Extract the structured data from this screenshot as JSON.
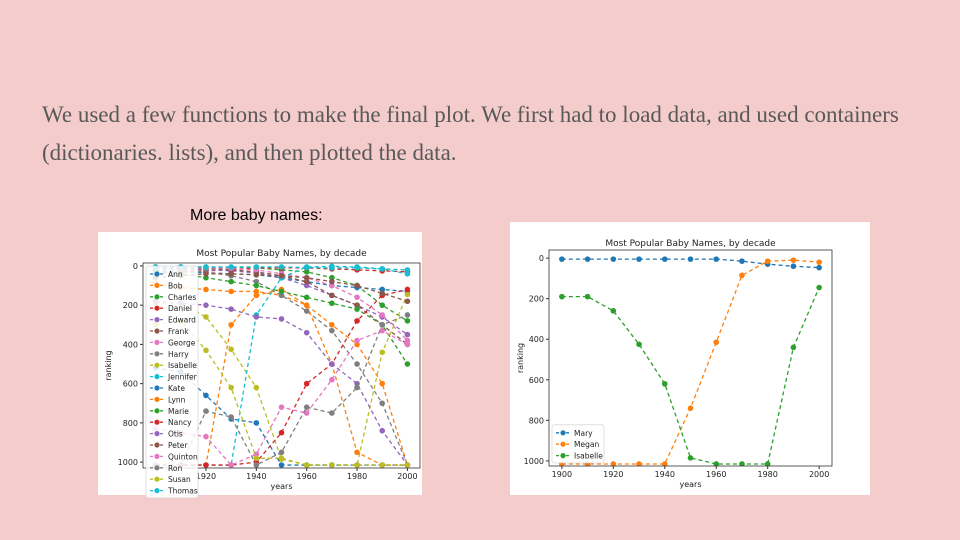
{
  "body": "We used a few functions to make the final plot. We first had to load data, and used containers (dictionaries. lists), and then plotted the data.",
  "caption": "More baby names:",
  "chart_data": [
    {
      "type": "line",
      "title": "Most Popular Baby Names, by decade",
      "x_label": "years",
      "y_label": "ranking",
      "x": [
        1900,
        1910,
        1920,
        1930,
        1940,
        1950,
        1960,
        1970,
        1980,
        1990,
        2000
      ],
      "xlim": [
        1895,
        2005
      ],
      "xticks": [
        1920,
        1940,
        1960,
        1980,
        2000
      ],
      "ylim": [
        1030,
        -15
      ],
      "yticks": [
        0,
        200,
        400,
        600,
        800,
        1000
      ],
      "legend": "upper left",
      "series": [
        {
          "name": "Ann",
          "color": "#1f77b4",
          "values": [
            25,
            30,
            35,
            40,
            45,
            60,
            80,
            100,
            110,
            120,
            130
          ]
        },
        {
          "name": "Bob",
          "color": "#ff7f0e",
          "values": [
            90,
            110,
            120,
            130,
            130,
            150,
            200,
            300,
            400,
            600,
            1015
          ]
        },
        {
          "name": "Charles",
          "color": "#2ca02c",
          "values": [
            5,
            5,
            6,
            8,
            10,
            20,
            30,
            60,
            100,
            200,
            280
          ]
        },
        {
          "name": "Daniel",
          "color": "#d62728",
          "values": [
            40,
            30,
            25,
            20,
            10,
            10,
            10,
            15,
            20,
            25,
            30
          ]
        },
        {
          "name": "Edward",
          "color": "#9467bd",
          "values": [
            10,
            15,
            20,
            25,
            35,
            60,
            100,
            150,
            200,
            260,
            350
          ]
        },
        {
          "name": "Frank",
          "color": "#8c564b",
          "values": [
            8,
            10,
            12,
            20,
            30,
            50,
            80,
            150,
            200,
            300,
            400
          ]
        },
        {
          "name": "George",
          "color": "#e377c2",
          "values": [
            5,
            6,
            8,
            12,
            20,
            40,
            60,
            100,
            160,
            250,
            380
          ]
        },
        {
          "name": "Harry",
          "color": "#7f7f7f",
          "values": [
            15,
            20,
            30,
            50,
            80,
            150,
            230,
            330,
            500,
            700,
            1015
          ]
        },
        {
          "name": "Isabelle",
          "color": "#bcbd22",
          "values": [
            190,
            190,
            260,
            425,
            620,
            985,
            1015,
            1015,
            1015,
            440,
            145
          ]
        },
        {
          "name": "Jennifer",
          "color": "#17becf",
          "values": [
            1015,
            1015,
            1015,
            1015,
            250,
            60,
            5,
            2,
            5,
            15,
            40
          ]
        },
        {
          "name": "Kate",
          "color": "#1f77b4",
          "values": [
            520,
            540,
            660,
            780,
            800,
            1015,
            1015,
            1015,
            1015,
            1015,
            1015
          ]
        },
        {
          "name": "Lynn",
          "color": "#ff7f0e",
          "values": [
            1015,
            1015,
            1015,
            300,
            150,
            120,
            200,
            500,
            950,
            1015,
            1015
          ]
        },
        {
          "name": "Marie",
          "color": "#2ca02c",
          "values": [
            30,
            40,
            60,
            80,
            100,
            130,
            160,
            190,
            220,
            300,
            500
          ]
        },
        {
          "name": "Nancy",
          "color": "#d62728",
          "values": [
            1015,
            1015,
            1015,
            1015,
            1000,
            850,
            600,
            500,
            280,
            150,
            120
          ]
        },
        {
          "name": "Otis",
          "color": "#9467bd",
          "values": [
            180,
            190,
            200,
            220,
            260,
            270,
            340,
            500,
            600,
            840,
            1015
          ]
        },
        {
          "name": "Peter",
          "color": "#8c564b",
          "values": [
            60,
            50,
            40,
            40,
            45,
            50,
            60,
            80,
            100,
            140,
            180
          ]
        },
        {
          "name": "Quinton",
          "color": "#e377c2",
          "values": [
            830,
            850,
            870,
            1015,
            960,
            720,
            750,
            580,
            380,
            330,
            400
          ]
        },
        {
          "name": "Ron",
          "color": "#7f7f7f",
          "values": [
            1015,
            1015,
            740,
            770,
            1015,
            950,
            720,
            750,
            620,
            300,
            250
          ]
        },
        {
          "name": "Susan",
          "color": "#bcbd22",
          "values": [
            300,
            280,
            430,
            620,
            980,
            980,
            1015,
            1015,
            1015,
            1015,
            1015
          ]
        },
        {
          "name": "Thomas",
          "color": "#17becf",
          "values": [
            5,
            5,
            5,
            5,
            5,
            5,
            8,
            10,
            10,
            15,
            20
          ]
        }
      ]
    },
    {
      "type": "line",
      "title": "Most Popular Baby Names, by decade",
      "x_label": "years",
      "y_label": "ranking",
      "x": [
        1900,
        1910,
        1920,
        1930,
        1940,
        1950,
        1960,
        1970,
        1980,
        1990,
        2000
      ],
      "xlim": [
        1895,
        2005
      ],
      "xticks": [
        1900,
        1920,
        1940,
        1960,
        1980,
        2000
      ],
      "ylim": [
        1025,
        -40
      ],
      "yticks": [
        0,
        200,
        400,
        600,
        800,
        1000
      ],
      "legend": "lower left",
      "series": [
        {
          "name": "Mary",
          "color": "#1f77b4",
          "values": [
            5,
            5,
            5,
            5,
            5,
            5,
            5,
            15,
            30,
            40,
            47
          ]
        },
        {
          "name": "Megan",
          "color": "#ff7f0e",
          "values": [
            1015,
            1015,
            1015,
            1015,
            1015,
            740,
            415,
            85,
            15,
            10,
            20
          ]
        },
        {
          "name": "Isabelle",
          "color": "#2ca02c",
          "values": [
            190,
            190,
            260,
            425,
            620,
            985,
            1015,
            1015,
            1015,
            440,
            145
          ]
        }
      ]
    }
  ]
}
